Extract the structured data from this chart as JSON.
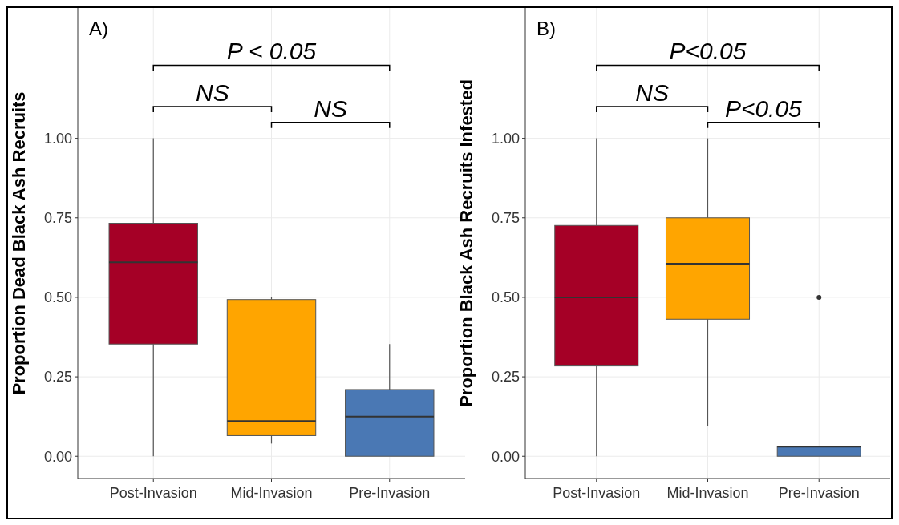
{
  "chart_data": [
    {
      "type": "box",
      "title": "A)",
      "ylabel": "Proportion Dead Black Ash Recruits",
      "categories": [
        "Post-Invasion",
        "Mid-Invasion",
        "Pre-Invasion"
      ],
      "colors": [
        "#a50026",
        "#ffa500",
        "#4a78b4"
      ],
      "boxes": [
        {
          "low": 0,
          "q1": 0.353,
          "median": 0.61,
          "q3": 0.733,
          "high": 1.0
        },
        {
          "low": 0.04,
          "q1": 0.065,
          "median": 0.111,
          "q3": 0.493,
          "high": 0.5
        },
        {
          "low": 0,
          "q1": 0,
          "median": 0.125,
          "q3": 0.21,
          "high": 0.353
        }
      ],
      "ylim": [
        -0.07,
        1.41
      ],
      "yticks": [
        {
          "value": 0,
          "label": "0.00"
        },
        {
          "value": 0.25,
          "label": "0.25"
        },
        {
          "value": 0.5,
          "label": "0.50"
        },
        {
          "value": 0.75,
          "label": "0.75"
        },
        {
          "value": 1,
          "label": "1.00"
        }
      ],
      "grid": true,
      "annotations": [
        "P < 0.05",
        "NS",
        "NS"
      ]
    },
    {
      "type": "box",
      "title": "B)",
      "ylabel": "Proportion Black Ash Recruits Infested",
      "categories": [
        "Post-Invasion",
        "Mid-Invasion",
        "Pre-Invasion"
      ],
      "colors": [
        "#a50026",
        "#ffa500",
        "#4a78b4"
      ],
      "boxes": [
        {
          "low": 0,
          "q1": 0.284,
          "median": 0.5,
          "q3": 0.726,
          "high": 1.0
        },
        {
          "low": 0.096,
          "q1": 0.431,
          "median": 0.606,
          "q3": 0.75,
          "high": 1.0
        },
        {
          "low": 0,
          "q1": 0,
          "median": 0.03,
          "q3": 0.03,
          "high": 0.03,
          "outliers": [
            0.5
          ]
        }
      ],
      "ylim": [
        -0.07,
        1.41
      ],
      "yticks": [
        {
          "value": 0,
          "label": "0.00"
        },
        {
          "value": 0.25,
          "label": "0.25"
        },
        {
          "value": 0.5,
          "label": "0.50"
        },
        {
          "value": 0.75,
          "label": "0.75"
        },
        {
          "value": 1,
          "label": "1.00"
        }
      ],
      "grid": true,
      "annotations": [
        "P<0.05",
        "NS",
        "P<0.05"
      ]
    }
  ]
}
